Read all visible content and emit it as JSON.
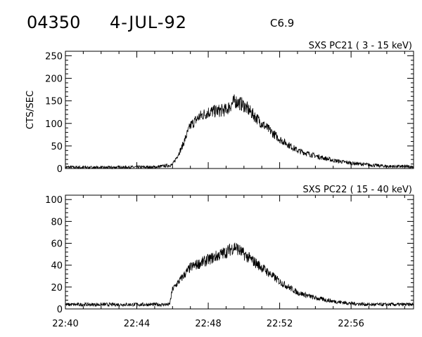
{
  "header": {
    "event_id": "04350",
    "date": "4-JUL-92",
    "goes_class": "C6.9"
  },
  "chart_data": [
    {
      "type": "line",
      "title": "SXS PC21  (  3 - 15 keV)",
      "ylabel": "CTS/SEC",
      "xlabel": "",
      "x_ticks": [
        "22:40",
        "22:44",
        "22:48",
        "22:52",
        "22:56"
      ],
      "xlim": [
        "22:40",
        "22:59:30"
      ],
      "ylim": [
        0,
        260
      ],
      "y_ticks": [
        0,
        50,
        100,
        150,
        200,
        250
      ],
      "grid": false,
      "series": [
        {
          "x": [
            "22:40",
            "22:42",
            "22:44",
            "22:45",
            "22:46",
            "22:46:30",
            "22:47",
            "22:47:30",
            "22:48",
            "22:49",
            "22:49:30",
            "22:50",
            "22:51",
            "22:52",
            "22:53",
            "22:54",
            "22:55",
            "22:56",
            "22:57",
            "22:58",
            "22:59:30"
          ],
          "values": [
            3,
            2,
            3,
            3,
            8,
            45,
            95,
            115,
            125,
            130,
            150,
            140,
            100,
            65,
            40,
            28,
            18,
            12,
            8,
            5,
            4
          ]
        }
      ]
    },
    {
      "type": "line",
      "title": "SXS PC22  ( 15 - 40 keV)",
      "ylabel": "",
      "xlabel": "",
      "x_ticks": [
        "22:40",
        "22:44",
        "22:48",
        "22:52",
        "22:56"
      ],
      "xlim": [
        "22:40",
        "22:59:30"
      ],
      "ylim": [
        0,
        104
      ],
      "y_ticks": [
        0,
        20,
        40,
        60,
        80,
        100
      ],
      "grid": false,
      "series": [
        {
          "x": [
            "22:40",
            "22:42",
            "22:44",
            "22:45:50",
            "22:46",
            "22:46:30",
            "22:47",
            "22:48",
            "22:49",
            "22:49:30",
            "22:50",
            "22:51",
            "22:52",
            "22:53",
            "22:54",
            "22:55",
            "22:56",
            "22:57",
            "22:58",
            "22:59:30"
          ],
          "values": [
            4,
            4,
            4,
            4,
            18,
            28,
            38,
            45,
            52,
            57,
            50,
            38,
            25,
            15,
            10,
            7,
            5,
            4,
            4,
            4
          ]
        }
      ]
    }
  ]
}
